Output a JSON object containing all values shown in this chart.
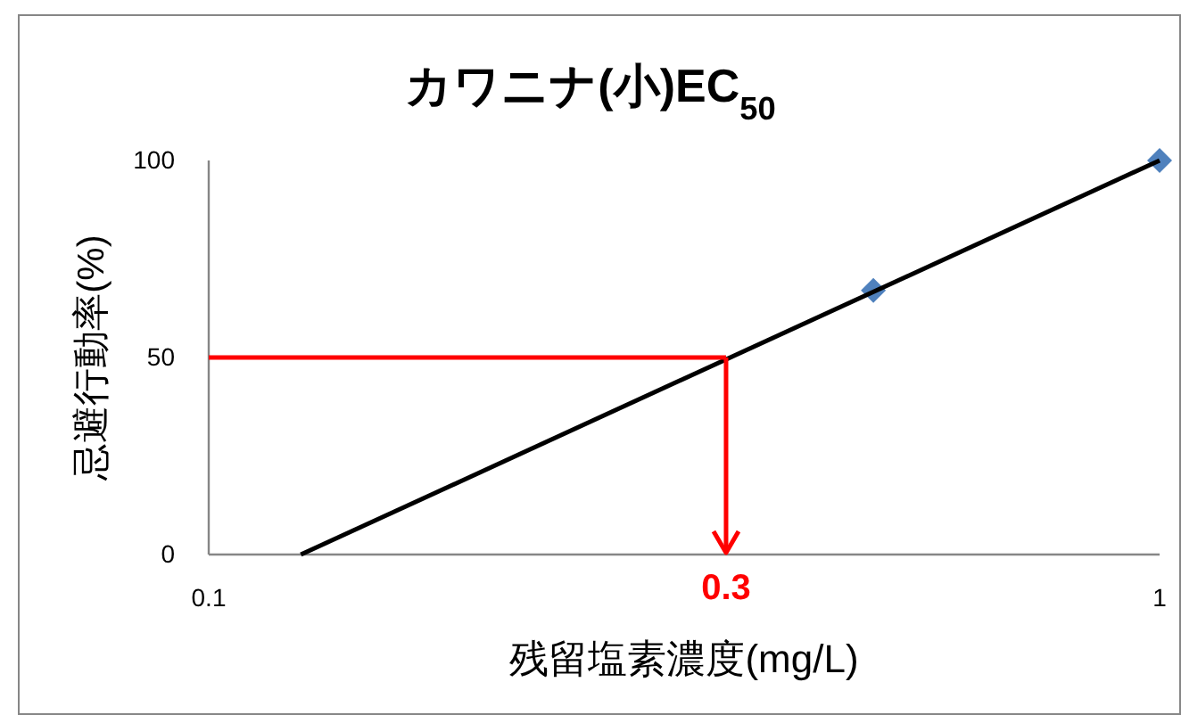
{
  "chart_data": {
    "type": "scatter",
    "title": "カワニナ(小)EC$_{50}$",
    "xlabel": "残留塩素濃度(mg/L)",
    "ylabel": "忌避行動率(%)",
    "series": [
      {
        "color": "#4f81bd",
        "x": [
          0.5,
          1
        ],
        "values": [
          67,
          100
        ],
        "marker": "diamond"
      },
      {
        "type": "line",
        "color": "#000000",
        "x": [
          0.125,
          1
        ],
        "values": [
          0,
          100
        ]
      },
      {
        "type": "line",
        "color": "#ff0000",
        "x": [
          0.1,
          0.35
        ],
        "values": [
          50,
          50
        ]
      }
    ],
    "annotations": [
      {
        "text": "0.3",
        "x": 0.35,
        "y": 50
      }
    ],
    "xlim": [
      0.1,
      1
    ],
    "ylim": [
      0,
      100
    ],
    "xticks": [
      0.1,
      1
    ],
    "yticks": [
      0,
      50,
      100
    ],
    "log": "x"
  }
}
